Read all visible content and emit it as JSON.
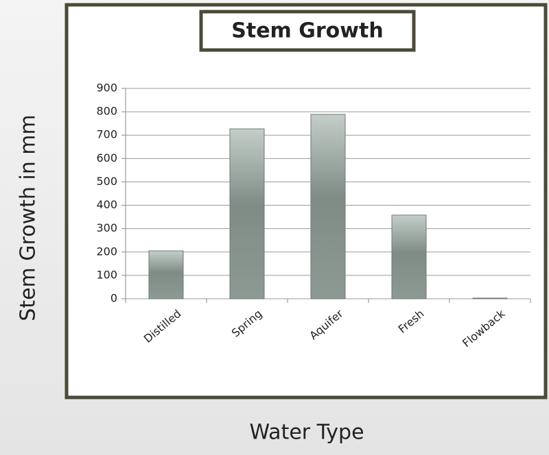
{
  "chart_data": {
    "type": "bar",
    "title": "Stem Growth",
    "y_label": "Stem Growth in mm",
    "x_label": "Water Type",
    "categories": [
      "Distilled",
      "Spring",
      "Aquifer",
      "Fresh",
      "Flowback"
    ],
    "values": [
      205,
      727,
      789,
      358,
      3
    ],
    "color": "#8a9892",
    "ylim": [
      0,
      900
    ],
    "yticks": [
      0,
      100,
      200,
      300,
      400,
      500,
      600,
      700,
      800,
      900
    ],
    "grid": true
  }
}
